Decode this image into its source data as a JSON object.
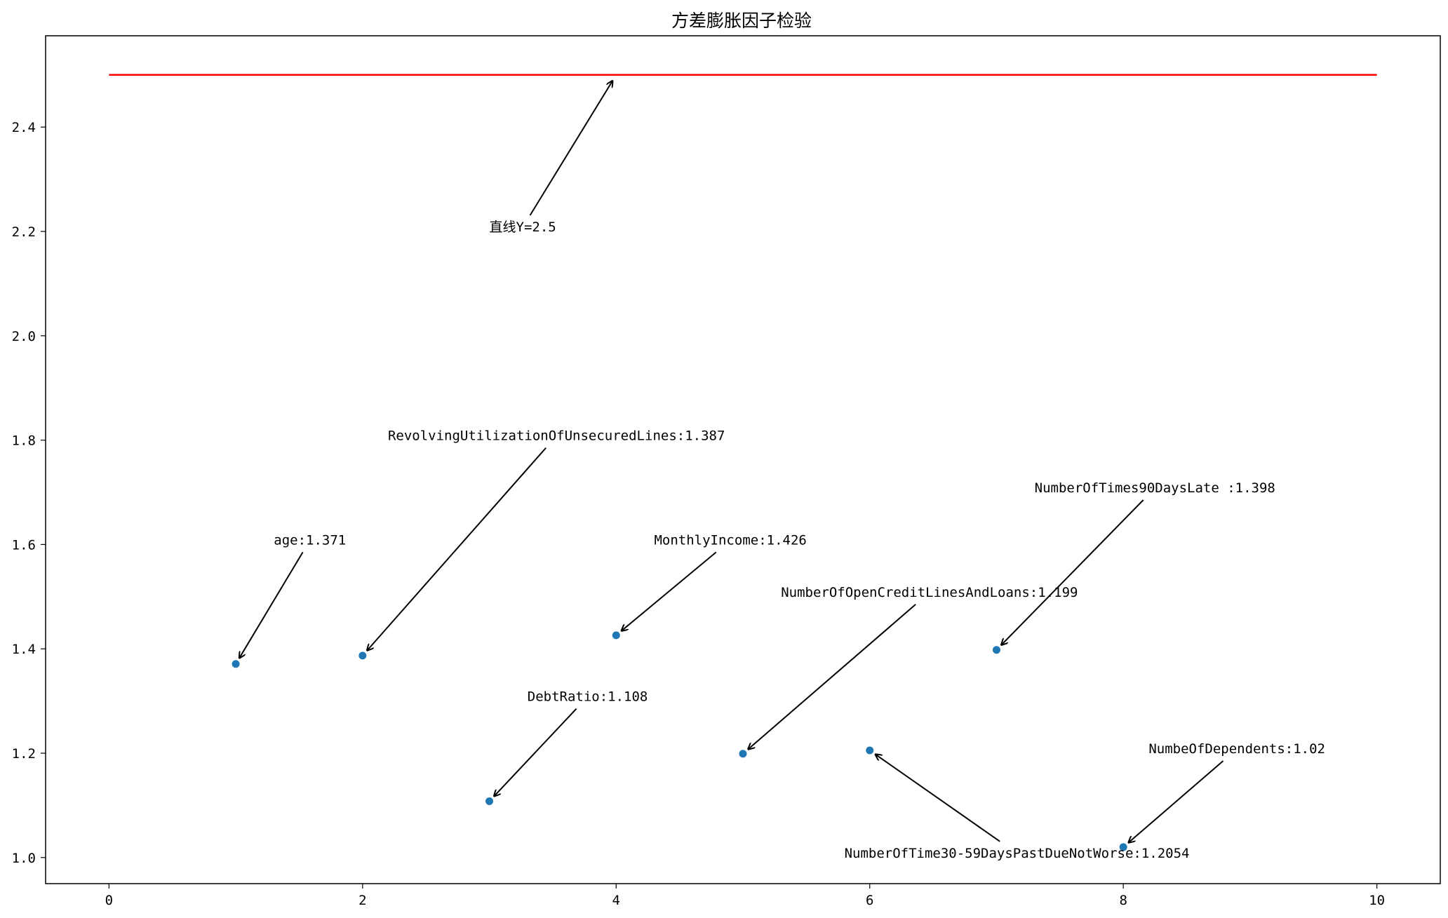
{
  "chart_data": {
    "type": "scatter",
    "title": "方差膨胀因子检验",
    "xlabel": "",
    "ylabel": "",
    "xlim": [
      -0.5,
      10.5
    ],
    "ylim": [
      0.95,
      2.575
    ],
    "xticks": [
      "0",
      "2",
      "4",
      "6",
      "8",
      "10"
    ],
    "yticks": [
      "1.0",
      "1.2",
      "1.4",
      "1.6",
      "1.8",
      "2.0",
      "2.2",
      "2.4"
    ],
    "grid": false,
    "colors": {
      "points": "#1f77b4",
      "reference_line": "#ff0000",
      "text": "#000000"
    },
    "points": [
      {
        "x": 1,
        "y": 1.371
      },
      {
        "x": 2,
        "y": 1.387
      },
      {
        "x": 3,
        "y": 1.108
      },
      {
        "x": 4,
        "y": 1.426
      },
      {
        "x": 5,
        "y": 1.199
      },
      {
        "x": 6,
        "y": 1.2054
      },
      {
        "x": 7,
        "y": 1.398
      },
      {
        "x": 8,
        "y": 1.02
      }
    ],
    "reference_line": {
      "y": 2.5,
      "x_from": 0,
      "x_to": 10
    },
    "annotations": [
      {
        "text": "age:1.371",
        "x": 1,
        "y": 1.371,
        "text_x": 1.3,
        "text_y": 1.6
      },
      {
        "text": "RevolvingUtilizationOfUnsecuredLines:1.387",
        "x": 2,
        "y": 1.387,
        "text_x": 2.2,
        "text_y": 1.8
      },
      {
        "text": "DebtRatio:1.108",
        "x": 3,
        "y": 1.108,
        "text_x": 3.3,
        "text_y": 1.3
      },
      {
        "text": "MonthlyIncome:1.426",
        "x": 4,
        "y": 1.426,
        "text_x": 4.3,
        "text_y": 1.6
      },
      {
        "text": "NumberOfOpenCreditLinesAndLoans:1.199",
        "x": 5,
        "y": 1.199,
        "text_x": 5.3,
        "text_y": 1.5
      },
      {
        "text": "NumberOfTime30-59DaysPastDueNotWorse:1.2054",
        "x": 6,
        "y": 1.2054,
        "text_x": 5.8,
        "text_y": 1.0
      },
      {
        "text": "NumberOfTimes90DaysLate :1.398",
        "x": 7,
        "y": 1.398,
        "text_x": 7.3,
        "text_y": 1.7
      },
      {
        "text": "NumbeOfDependents:1.02",
        "x": 8,
        "y": 1.02,
        "text_x": 8.2,
        "text_y": 1.2
      },
      {
        "text": "直线Y=2.5",
        "x": 4,
        "y": 2.5,
        "text_x": 3.0,
        "text_y": 2.2
      }
    ]
  }
}
